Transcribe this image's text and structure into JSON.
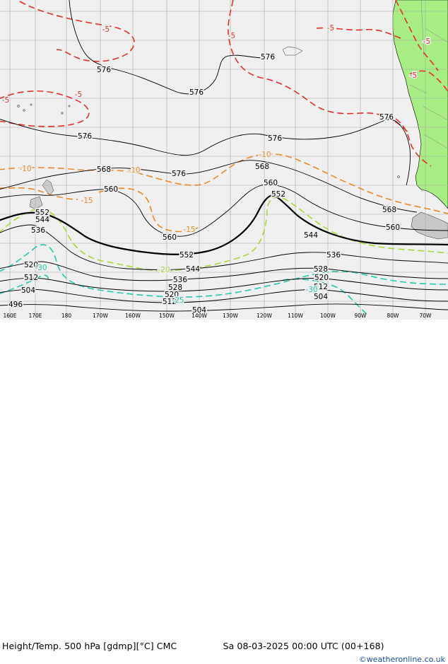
{
  "map": {
    "title": "Height/Temp. 500 hPa [gdmp][°C] CMC",
    "valid_time": "Sa 08-03-2025 00:00 UTC (00+168)",
    "credit": "©weatheronline.co.uk",
    "longitude_labels": [
      "160E",
      "170E",
      "180",
      "170W",
      "160W",
      "150W",
      "140W",
      "130W",
      "120W",
      "110W",
      "100W",
      "90W",
      "80W",
      "70W"
    ],
    "height_contour_labels": [
      "576",
      "576",
      "576",
      "576",
      "576",
      "576",
      "576",
      "568",
      "568",
      "568",
      "560",
      "560",
      "560",
      "560",
      "552",
      "552",
      "552",
      "544",
      "544",
      "544",
      "536",
      "536",
      "536",
      "528",
      "528",
      "520",
      "520",
      "520",
      "512",
      "512",
      "512",
      "504",
      "504",
      "504",
      "496"
    ],
    "temperature_contour_labels": [
      "-5",
      "-5",
      "-5",
      "-5",
      "-5",
      "-5",
      "-5",
      "-10",
      "-10",
      "-10",
      "-15",
      "-15",
      "-20",
      "-25",
      "-30",
      "-30"
    ],
    "colors": {
      "ocean": "#f0f0f0",
      "land": "#a8ee84",
      "grid": "#aaaaaa",
      "height_contour": "#000000",
      "temp_minus5": "#e8302a",
      "temp_minus10": "#ec8a2a",
      "temp_minus20": "#a6d93a",
      "temp_minus25": "#28c8b0",
      "credit": "#1a4fa0"
    }
  }
}
